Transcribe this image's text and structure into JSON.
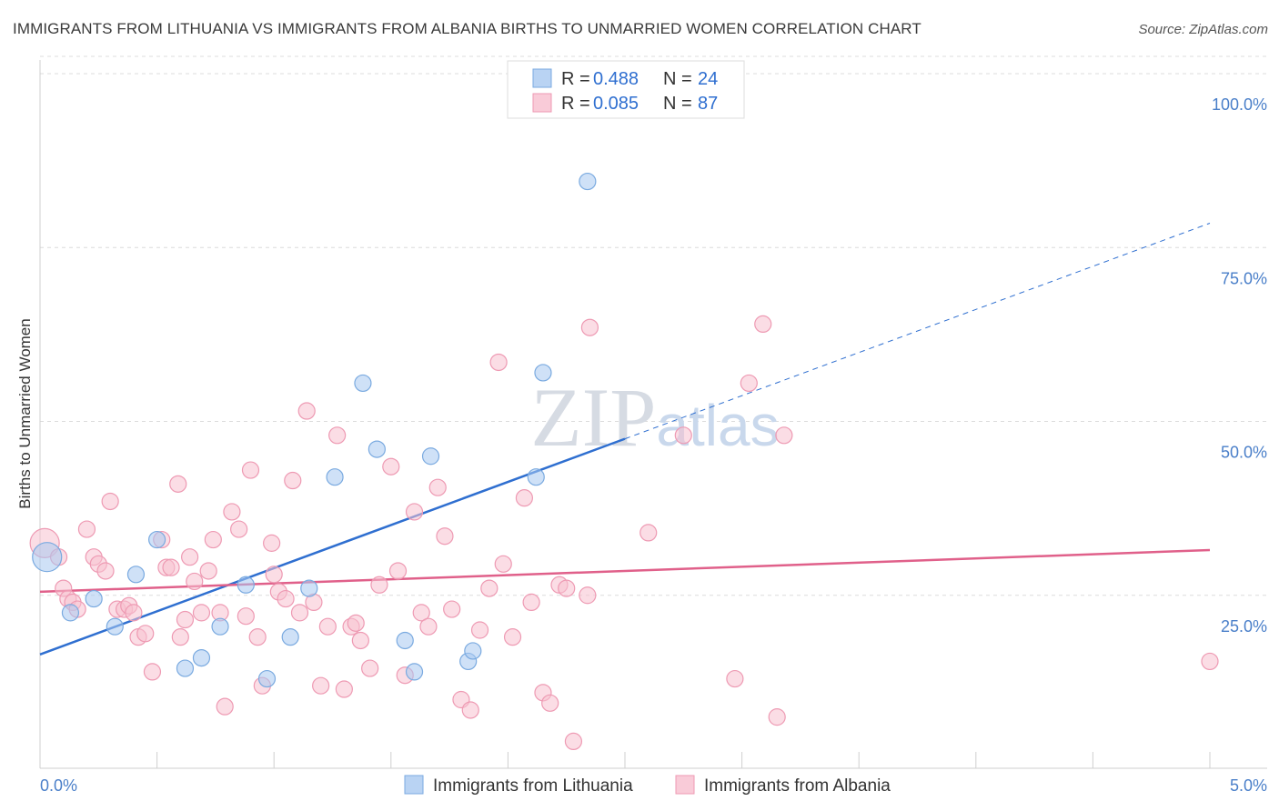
{
  "title": "IMMIGRANTS FROM LITHUANIA VS IMMIGRANTS FROM ALBANIA BIRTHS TO UNMARRIED WOMEN CORRELATION CHART",
  "source": "Source: ZipAtlas.com",
  "watermark": "ZIPatlas",
  "chart_data": {
    "type": "scatter",
    "ylabel": "Births to Unmarried Women",
    "xlim": [
      0,
      5
    ],
    "ylim": [
      0,
      100
    ],
    "x_tick_labels": [
      "0.0%",
      "5.0%"
    ],
    "y_ticks": [
      25,
      50,
      75,
      100
    ],
    "y_tick_labels": [
      "25.0%",
      "50.0%",
      "75.0%",
      "100.0%"
    ],
    "grid": true,
    "legend": {
      "position": "top-center",
      "rows": [
        {
          "r_label": "R =",
          "r_value": "0.488",
          "n_label": "N =",
          "n_value": "24"
        },
        {
          "r_label": "R =",
          "r_value": "0.085",
          "n_label": "N =",
          "n_value": "87"
        }
      ]
    },
    "series": [
      {
        "name": "Immigrants from Lithuania",
        "color": "#a8c8f0",
        "stroke": "#7aaae0",
        "trend_color": "#2f6fd0",
        "trend": {
          "x0": 0,
          "y0": 16.5,
          "x1": 2.5,
          "y1": 47.5,
          "dash_to_x": 5,
          "dash_to_y": 78.5
        },
        "points": [
          [
            0.03,
            30.5
          ],
          [
            0.13,
            22.5
          ],
          [
            0.23,
            24.5
          ],
          [
            0.32,
            20.5
          ],
          [
            0.41,
            28
          ],
          [
            0.5,
            33
          ],
          [
            0.62,
            14.5
          ],
          [
            0.69,
            16
          ],
          [
            0.77,
            20.5
          ],
          [
            0.88,
            26.5
          ],
          [
            0.97,
            13
          ],
          [
            1.07,
            19
          ],
          [
            1.15,
            26
          ],
          [
            1.26,
            42
          ],
          [
            1.38,
            55.5
          ],
          [
            1.44,
            46
          ],
          [
            1.56,
            18.5
          ],
          [
            1.6,
            14
          ],
          [
            1.67,
            45
          ],
          [
            1.83,
            15.5
          ],
          [
            1.85,
            17
          ],
          [
            2.12,
            42
          ],
          [
            2.15,
            57
          ],
          [
            2.34,
            84.5
          ]
        ]
      },
      {
        "name": "Immigrants from Albania",
        "color": "#f7c1d0",
        "stroke": "#ee9ab3",
        "trend_color": "#e0608a",
        "trend": {
          "x0": 0,
          "y0": 25.5,
          "x1": 5,
          "y1": 31.5
        },
        "points": [
          [
            0.02,
            32.5
          ],
          [
            0.08,
            30.5
          ],
          [
            0.1,
            26
          ],
          [
            0.12,
            24.5
          ],
          [
            0.14,
            24
          ],
          [
            0.16,
            23
          ],
          [
            0.2,
            34.5
          ],
          [
            0.23,
            30.5
          ],
          [
            0.25,
            29.5
          ],
          [
            0.28,
            28.5
          ],
          [
            0.3,
            38.5
          ],
          [
            0.33,
            23
          ],
          [
            0.36,
            23
          ],
          [
            0.38,
            23.5
          ],
          [
            0.4,
            22.5
          ],
          [
            0.42,
            19
          ],
          [
            0.45,
            19.5
          ],
          [
            0.48,
            14
          ],
          [
            0.52,
            33
          ],
          [
            0.54,
            29
          ],
          [
            0.56,
            29
          ],
          [
            0.59,
            41
          ],
          [
            0.62,
            21.5
          ],
          [
            0.64,
            30.5
          ],
          [
            0.66,
            27
          ],
          [
            0.69,
            22.5
          ],
          [
            0.72,
            28.5
          ],
          [
            0.74,
            33
          ],
          [
            0.77,
            22.5
          ],
          [
            0.79,
            9
          ],
          [
            0.82,
            37
          ],
          [
            0.85,
            34.5
          ],
          [
            0.88,
            22
          ],
          [
            0.9,
            43
          ],
          [
            0.93,
            19
          ],
          [
            0.95,
            12
          ],
          [
            0.99,
            32.5
          ],
          [
            1.02,
            25.5
          ],
          [
            1.05,
            24.5
          ],
          [
            1.08,
            41.5
          ],
          [
            1.11,
            22.5
          ],
          [
            1.14,
            51.5
          ],
          [
            1.17,
            24
          ],
          [
            1.2,
            12
          ],
          [
            1.23,
            20.5
          ],
          [
            1.27,
            48
          ],
          [
            1.3,
            11.5
          ],
          [
            1.33,
            20.5
          ],
          [
            1.35,
            21
          ],
          [
            1.37,
            18.5
          ],
          [
            1.41,
            14.5
          ],
          [
            1.45,
            26.5
          ],
          [
            1.5,
            43.5
          ],
          [
            1.53,
            28.5
          ],
          [
            1.56,
            13.5
          ],
          [
            1.6,
            37
          ],
          [
            1.63,
            22.5
          ],
          [
            1.66,
            20.5
          ],
          [
            1.7,
            40.5
          ],
          [
            1.73,
            33.5
          ],
          [
            1.76,
            23
          ],
          [
            1.8,
            10
          ],
          [
            1.84,
            8.5
          ],
          [
            1.88,
            20
          ],
          [
            1.92,
            26
          ],
          [
            1.96,
            58.5
          ],
          [
            1.98,
            29.5
          ],
          [
            2.02,
            19
          ],
          [
            2.07,
            39
          ],
          [
            2.1,
            24
          ],
          [
            2.15,
            11
          ],
          [
            2.18,
            9.5
          ],
          [
            2.22,
            26.5
          ],
          [
            2.25,
            26
          ],
          [
            2.28,
            4
          ],
          [
            2.34,
            25
          ],
          [
            2.35,
            63.5
          ],
          [
            2.6,
            34
          ],
          [
            2.75,
            48
          ],
          [
            2.97,
            13
          ],
          [
            3.03,
            55.5
          ],
          [
            3.09,
            64
          ],
          [
            3.15,
            7.5
          ],
          [
            3.18,
            48
          ],
          [
            5.0,
            15.5
          ],
          [
            0.6,
            19
          ],
          [
            1.0,
            28
          ]
        ]
      }
    ]
  }
}
